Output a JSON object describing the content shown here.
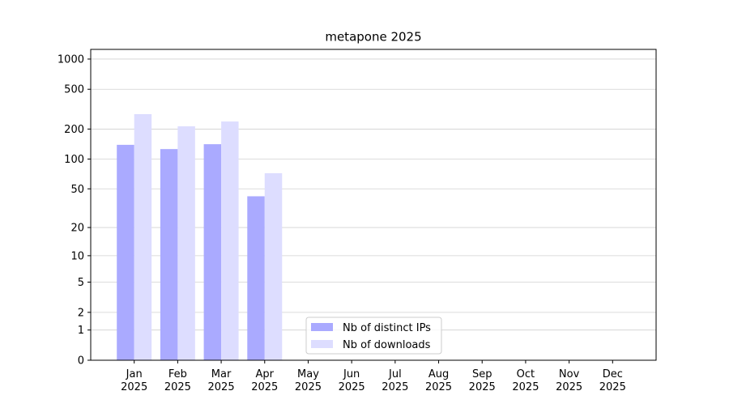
{
  "chart_data": {
    "type": "bar",
    "title": "metapone 2025",
    "categories": [
      "Jan\n2025",
      "Feb\n2025",
      "Mar\n2025",
      "Apr\n2025",
      "May\n2025",
      "Jun\n2025",
      "Jul\n2025",
      "Aug\n2025",
      "Sep\n2025",
      "Oct\n2025",
      "Nov\n2025",
      "Dec\n2025"
    ],
    "series": [
      {
        "name": "Nb of distinct IPs",
        "color": "#aaaaff",
        "values": [
          139,
          126,
          141,
          42,
          null,
          null,
          null,
          null,
          null,
          null,
          null,
          null
        ]
      },
      {
        "name": "Nb of downloads",
        "color": "#ddddff",
        "values": [
          282,
          213,
          238,
          72,
          null,
          null,
          null,
          null,
          null,
          null,
          null,
          null
        ]
      }
    ],
    "yscale": "log1p",
    "ylim": [
      0,
      1249
    ],
    "yticks": [
      0,
      1,
      2,
      5,
      10,
      20,
      50,
      100,
      200,
      500,
      1000
    ],
    "grid": true,
    "legend": "lower center"
  }
}
